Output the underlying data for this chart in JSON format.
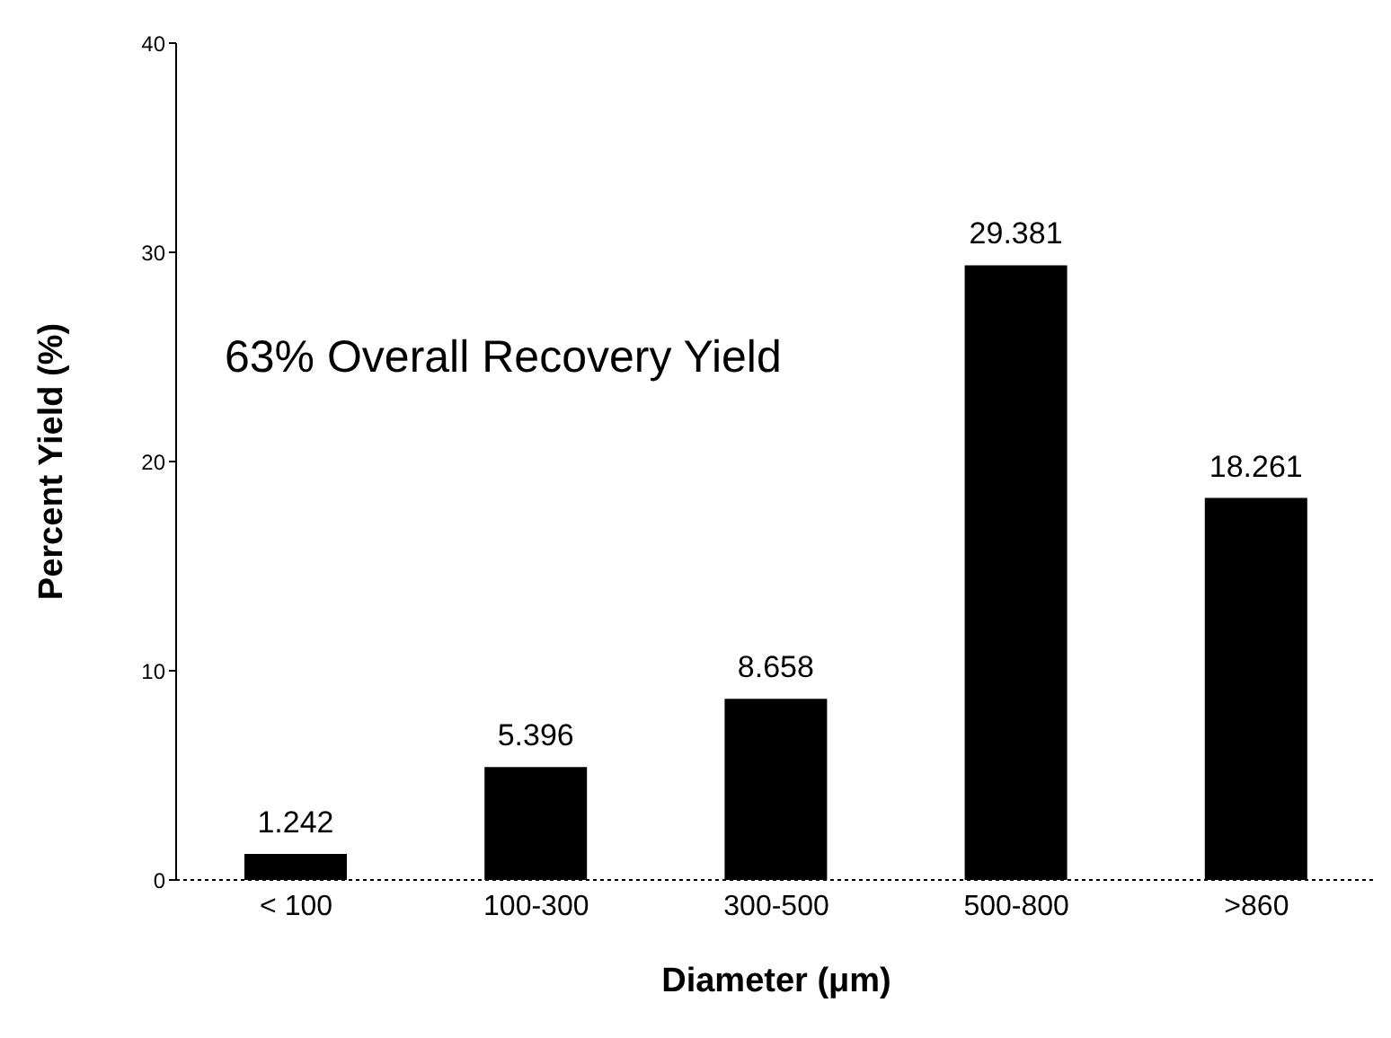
{
  "chart_data": {
    "type": "bar",
    "xlabel": "Diameter (μm)",
    "ylabel": "Percent Yield (%)",
    "categories": [
      "< 100",
      "100-300",
      "300-500",
      "500-800",
      ">860"
    ],
    "values": [
      1.242,
      5.396,
      8.658,
      29.381,
      18.261
    ],
    "color": "#000000",
    "ylim": [
      0,
      40
    ],
    "yticks": [
      0,
      10,
      20,
      30,
      40
    ],
    "data_labels": true,
    "annotations": [
      "63% Overall Recovery Yield"
    ]
  }
}
